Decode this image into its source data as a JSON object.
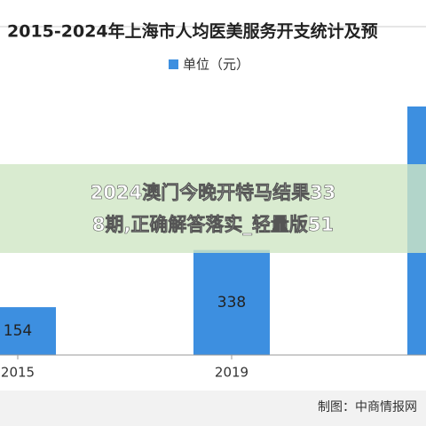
{
  "chart_data": {
    "type": "bar",
    "title": "2015-2024年上海市人均医美服务开支统计及预",
    "categories": [
      "2015",
      "2019",
      null
    ],
    "series": [
      {
        "name": "单位（元）",
        "color": "#3d8fe0",
        "values": [
          154,
          338,
          800
        ]
      }
    ],
    "ylim": [
      0,
      1000
    ]
  },
  "overlay_text": [
    "2024澳门今晚开特马结果33",
    "8期,正确解答落实_轻量版51"
  ],
  "footer": "制图：中商情报网"
}
